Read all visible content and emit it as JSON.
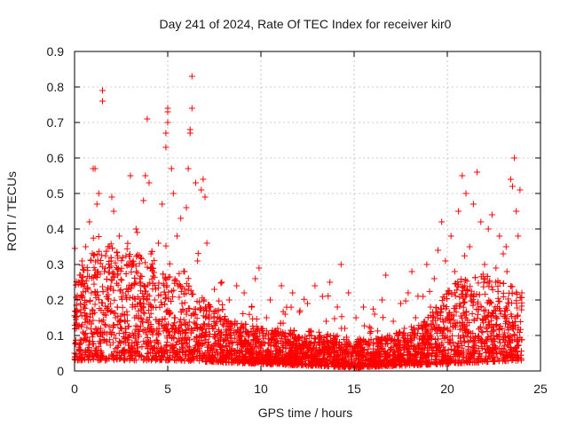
{
  "chart_data": {
    "type": "scatter",
    "title": "Day 241 of 2024, Rate Of TEC Index for receiver kir0",
    "xlabel": "GPS time / hours",
    "ylabel": "ROTI / TECUs",
    "xlim": [
      0,
      25
    ],
    "ylim": [
      0,
      0.9
    ],
    "x_ticks": [
      "0",
      "5",
      "10",
      "15",
      "20",
      "25"
    ],
    "x_tick_values": [
      0,
      5,
      10,
      15,
      20,
      25
    ],
    "y_ticks": [
      "0",
      "0.1",
      "0.2",
      "0.3",
      "0.4",
      "0.5",
      "0.6",
      "0.7",
      "0.8",
      "0.9"
    ],
    "y_tick_values": [
      0,
      0.1,
      0.2,
      0.3,
      0.4,
      0.5,
      0.6,
      0.7,
      0.8,
      0.9
    ],
    "grid": true,
    "marker": "+",
    "color": "#ff0000",
    "series": [
      {
        "name": "ROTI",
        "points": [
          [
            0.0,
            0.05
          ],
          [
            0.1,
            0.12
          ],
          [
            0.2,
            0.25
          ],
          [
            0.3,
            0.08
          ],
          [
            0.4,
            0.31
          ],
          [
            0.5,
            0.18
          ],
          [
            0.6,
            0.35
          ],
          [
            0.7,
            0.06
          ],
          [
            0.8,
            0.42
          ],
          [
            0.9,
            0.22
          ],
          [
            1.0,
            0.57
          ],
          [
            1.1,
            0.57
          ],
          [
            1.2,
            0.47
          ],
          [
            1.3,
            0.5
          ],
          [
            1.4,
            0.12
          ],
          [
            1.5,
            0.79
          ],
          [
            1.5,
            0.76
          ],
          [
            1.6,
            0.28
          ],
          [
            1.8,
            0.35
          ],
          [
            2.0,
            0.49
          ],
          [
            2.1,
            0.45
          ],
          [
            2.2,
            0.15
          ],
          [
            2.4,
            0.38
          ],
          [
            2.6,
            0.22
          ],
          [
            2.8,
            0.3
          ],
          [
            3.0,
            0.55
          ],
          [
            3.1,
            0.18
          ],
          [
            3.3,
            0.4
          ],
          [
            3.5,
            0.26
          ],
          [
            3.7,
            0.48
          ],
          [
            3.8,
            0.55
          ],
          [
            3.9,
            0.71
          ],
          [
            4.0,
            0.53
          ],
          [
            4.1,
            0.33
          ],
          [
            4.3,
            0.2
          ],
          [
            4.5,
            0.36
          ],
          [
            4.7,
            0.47
          ],
          [
            4.9,
            0.63
          ],
          [
            4.9,
            0.67
          ],
          [
            5.0,
            0.74
          ],
          [
            5.0,
            0.73
          ],
          [
            5.0,
            0.7
          ],
          [
            5.1,
            0.16
          ],
          [
            5.2,
            0.57
          ],
          [
            5.3,
            0.5
          ],
          [
            5.5,
            0.38
          ],
          [
            5.7,
            0.43
          ],
          [
            5.9,
            0.28
          ],
          [
            6.0,
            0.46
          ],
          [
            6.1,
            0.57
          ],
          [
            6.2,
            0.68
          ],
          [
            6.2,
            0.67
          ],
          [
            6.3,
            0.83
          ],
          [
            6.3,
            0.74
          ],
          [
            6.5,
            0.53
          ],
          [
            6.6,
            0.31
          ],
          [
            6.8,
            0.51
          ],
          [
            6.9,
            0.54
          ],
          [
            7.0,
            0.49
          ],
          [
            7.1,
            0.36
          ],
          [
            7.3,
            0.18
          ],
          [
            7.5,
            0.23
          ],
          [
            7.7,
            0.1
          ],
          [
            7.9,
            0.25
          ],
          [
            8.1,
            0.14
          ],
          [
            8.3,
            0.2
          ],
          [
            8.5,
            0.08
          ],
          [
            8.7,
            0.24
          ],
          [
            8.9,
            0.12
          ],
          [
            9.1,
            0.22
          ],
          [
            9.3,
            0.06
          ],
          [
            9.5,
            0.18
          ],
          [
            9.7,
            0.26
          ],
          [
            9.9,
            0.29
          ],
          [
            10.1,
            0.1
          ],
          [
            10.3,
            0.15
          ],
          [
            10.5,
            0.2
          ],
          [
            10.7,
            0.07
          ],
          [
            10.9,
            0.12
          ],
          [
            11.1,
            0.24
          ],
          [
            11.3,
            0.16
          ],
          [
            11.5,
            0.05
          ],
          [
            11.7,
            0.22
          ],
          [
            11.9,
            0.09
          ],
          [
            12.1,
            0.17
          ],
          [
            12.3,
            0.04
          ],
          [
            12.5,
            0.19
          ],
          [
            12.7,
            0.11
          ],
          [
            12.9,
            0.24
          ],
          [
            13.1,
            0.08
          ],
          [
            13.3,
            0.21
          ],
          [
            13.5,
            0.14
          ],
          [
            13.7,
            0.25
          ],
          [
            13.9,
            0.1
          ],
          [
            14.1,
            0.18
          ],
          [
            14.3,
            0.3
          ],
          [
            14.5,
            0.12
          ],
          [
            14.7,
            0.22
          ],
          [
            14.9,
            0.06
          ],
          [
            15.1,
            0.15
          ],
          [
            15.3,
            0.09
          ],
          [
            15.5,
            0.18
          ],
          [
            15.7,
            0.05
          ],
          [
            15.9,
            0.12
          ],
          [
            16.1,
            0.16
          ],
          [
            16.3,
            0.08
          ],
          [
            16.5,
            0.2
          ],
          [
            16.7,
            0.27
          ],
          [
            16.9,
            0.1
          ],
          [
            17.1,
            0.14
          ],
          [
            17.3,
            0.07
          ],
          [
            17.5,
            0.19
          ],
          [
            17.7,
            0.12
          ],
          [
            17.9,
            0.22
          ],
          [
            18.1,
            0.28
          ],
          [
            18.3,
            0.15
          ],
          [
            18.5,
            0.09
          ],
          [
            18.7,
            0.21
          ],
          [
            18.9,
            0.3
          ],
          [
            19.1,
            0.18
          ],
          [
            19.3,
            0.26
          ],
          [
            19.5,
            0.34
          ],
          [
            19.7,
            0.42
          ],
          [
            19.9,
            0.31
          ],
          [
            20.0,
            0.12
          ],
          [
            20.2,
            0.38
          ],
          [
            20.4,
            0.28
          ],
          [
            20.6,
            0.45
          ],
          [
            20.8,
            0.55
          ],
          [
            21.0,
            0.5
          ],
          [
            21.2,
            0.35
          ],
          [
            21.4,
            0.47
          ],
          [
            21.6,
            0.56
          ],
          [
            21.8,
            0.42
          ],
          [
            22.0,
            0.3
          ],
          [
            22.2,
            0.4
          ],
          [
            22.4,
            0.44
          ],
          [
            22.6,
            0.25
          ],
          [
            22.8,
            0.38
          ],
          [
            23.0,
            0.33
          ],
          [
            23.2,
            0.28
          ],
          [
            23.4,
            0.54
          ],
          [
            23.5,
            0.52
          ],
          [
            23.6,
            0.6
          ],
          [
            23.7,
            0.45
          ],
          [
            23.8,
            0.38
          ],
          [
            23.9,
            0.51
          ],
          [
            24.0,
            0.22
          ]
        ]
      }
    ],
    "background_density": {
      "description": "dense cluster of markers following the envelope below",
      "envelope": [
        [
          0,
          0.22
        ],
        [
          1,
          0.3
        ],
        [
          2,
          0.32
        ],
        [
          3,
          0.3
        ],
        [
          4,
          0.28
        ],
        [
          5,
          0.24
        ],
        [
          6,
          0.22
        ],
        [
          7,
          0.18
        ],
        [
          8,
          0.14
        ],
        [
          9,
          0.12
        ],
        [
          10,
          0.11
        ],
        [
          11,
          0.1
        ],
        [
          12,
          0.09
        ],
        [
          13,
          0.09
        ],
        [
          14,
          0.09
        ],
        [
          15,
          0.08
        ],
        [
          16,
          0.08
        ],
        [
          17,
          0.09
        ],
        [
          18,
          0.11
        ],
        [
          19,
          0.14
        ],
        [
          20,
          0.2
        ],
        [
          21,
          0.24
        ],
        [
          22,
          0.24
        ],
        [
          23,
          0.22
        ],
        [
          24,
          0.2
        ]
      ],
      "floor": [
        [
          0,
          0.03
        ],
        [
          5,
          0.03
        ],
        [
          10,
          0.02
        ],
        [
          15,
          0.01
        ],
        [
          20,
          0.02
        ],
        [
          24,
          0.03
        ]
      ],
      "count": 4200
    }
  }
}
